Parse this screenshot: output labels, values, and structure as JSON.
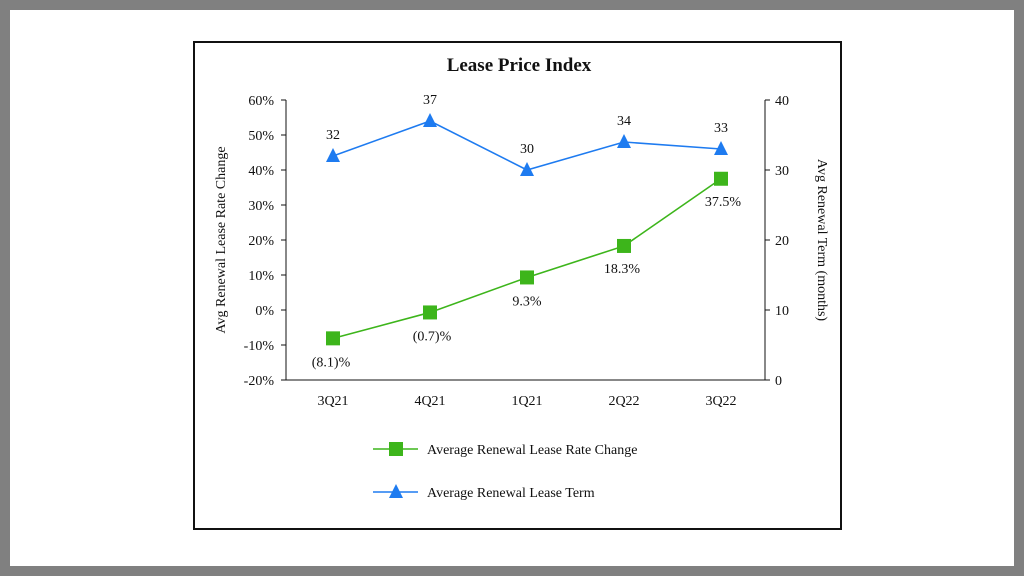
{
  "chart_data": {
    "type": "line",
    "title": "Lease Price Index",
    "categories": [
      "3Q21",
      "4Q21",
      "1Q21",
      "2Q22",
      "3Q22"
    ],
    "y_left": {
      "label": "Avg Renewal Lease Rate Change",
      "range": [
        -20,
        60
      ],
      "ticks": [
        -20,
        -10,
        0,
        10,
        20,
        30,
        40,
        50,
        60
      ],
      "tick_labels": [
        "-20%",
        "-10%",
        "0%",
        "10%",
        "20%",
        "30%",
        "40%",
        "50%",
        "60%"
      ]
    },
    "y_right": {
      "label": "Avg Renewal Term (months)",
      "range": [
        0,
        40
      ],
      "ticks": [
        0,
        10,
        20,
        30,
        40
      ],
      "tick_labels": [
        "0",
        "10",
        "20",
        "30",
        "40"
      ]
    },
    "grid": false,
    "legend_position": "bottom",
    "series": [
      {
        "name": "Average Renewal Lease Rate Change",
        "axis": "left",
        "marker": "square",
        "color": "#3db51b",
        "values": [
          -8.1,
          -0.7,
          9.3,
          18.3,
          37.5
        ],
        "data_labels": [
          "(8.1)%",
          "(0.7)%",
          "9.3%",
          "18.3%",
          "37.5%"
        ]
      },
      {
        "name": "Average Renewal Lease Term",
        "axis": "right",
        "marker": "triangle",
        "color": "#1e7bf0",
        "values": [
          32,
          37,
          30,
          34,
          33
        ],
        "data_labels": [
          "32",
          "37",
          "30",
          "34",
          "33"
        ]
      }
    ]
  }
}
